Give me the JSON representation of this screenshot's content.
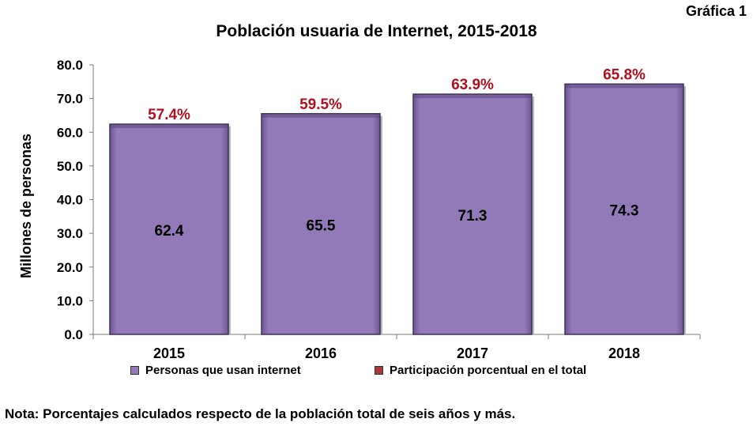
{
  "figure_label": "Gráfica 1",
  "note": "Nota: Porcentajes calculados respecto de la población total de seis años y más.",
  "colors": {
    "bar": "#9279b8",
    "bar_dark": "#6e5896",
    "percent": "#b01020",
    "swatch_pct": "#a83838"
  },
  "chart_data": {
    "type": "bar",
    "title": "Población usuaria de Internet, 2015-2018",
    "ylabel": "Millones de personas",
    "xlabel": "",
    "ylim": [
      0,
      80
    ],
    "yticks": [
      "0.0",
      "10.0",
      "20.0",
      "30.0",
      "40.0",
      "50.0",
      "60.0",
      "70.0",
      "80.0"
    ],
    "categories": [
      "2015",
      "2016",
      "2017",
      "2018"
    ],
    "series": [
      {
        "name": "Personas que usan internet",
        "values": [
          62.4,
          65.5,
          71.3,
          74.3
        ],
        "labels": [
          "62.4",
          "65.5",
          "71.3",
          "74.3"
        ]
      },
      {
        "name": "Participación porcentual en el total",
        "values": [
          57.4,
          59.5,
          63.9,
          65.8
        ],
        "labels": [
          "57.4%",
          "59.5%",
          "63.9%",
          "65.8%"
        ]
      }
    ],
    "grid": false,
    "legend": "bottom"
  }
}
